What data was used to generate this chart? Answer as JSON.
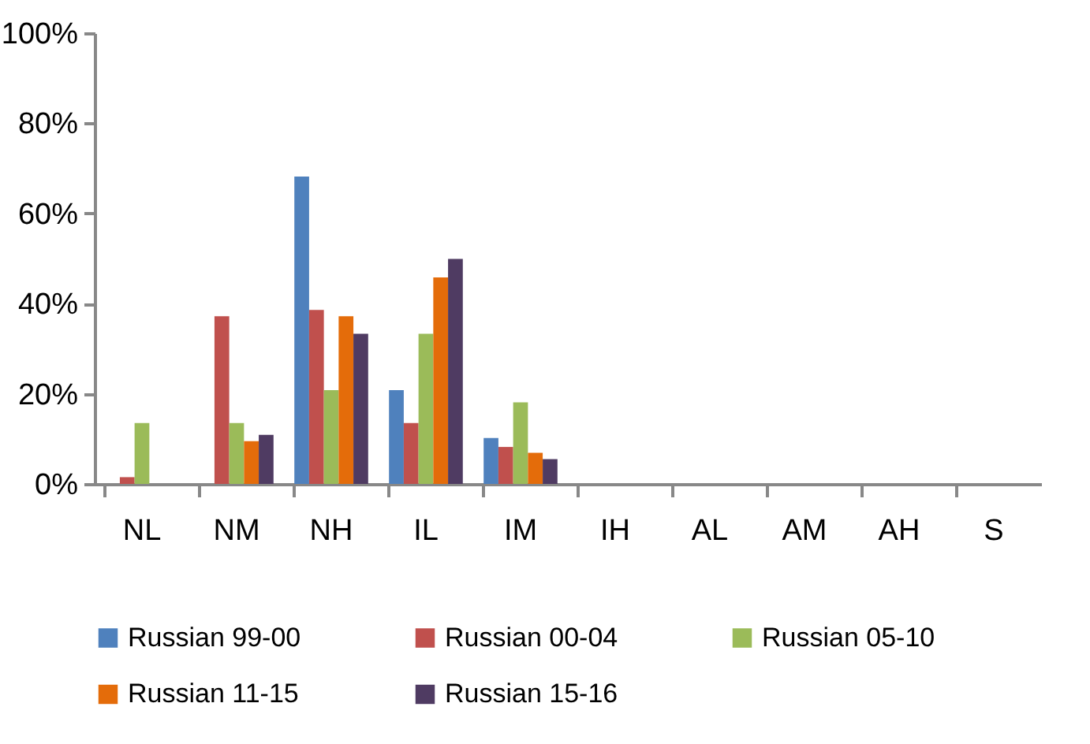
{
  "chart_data": {
    "type": "bar",
    "categories": [
      "NL",
      "NM",
      "NH",
      "IL",
      "IM",
      "IH",
      "AL",
      "AM",
      "AH",
      "S"
    ],
    "series": [
      {
        "name": "Russian 99-00",
        "color": "#4f81bd",
        "values": [
          0,
          0,
          68.2,
          20.8,
          10.2,
          0,
          0,
          0,
          0,
          0
        ]
      },
      {
        "name": "Russian 00-04",
        "color": "#c0504d",
        "values": [
          1.5,
          37.2,
          38.6,
          13.5,
          8.2,
          0,
          0,
          0,
          0,
          0
        ]
      },
      {
        "name": "Russian 05-10",
        "color": "#9bbb59",
        "values": [
          13.5,
          13.5,
          20.8,
          33.3,
          18.1,
          0,
          0,
          0,
          0,
          0
        ]
      },
      {
        "name": "Russian 11-15",
        "color": "#e46c0a",
        "values": [
          0,
          9.5,
          37.2,
          45.8,
          6.9,
          0,
          0,
          0,
          0,
          0
        ]
      },
      {
        "name": "Russian 15-16",
        "color": "#4f3b62",
        "values": [
          0,
          10.9,
          33.3,
          49.9,
          5.5,
          0,
          0,
          0,
          0,
          0
        ]
      }
    ],
    "ylim": [
      0,
      100
    ],
    "yticks": [
      {
        "value": 0,
        "label": "0%"
      },
      {
        "value": 20,
        "label": "20%"
      },
      {
        "value": 40,
        "label": "40%"
      },
      {
        "value": 60,
        "label": "60%"
      },
      {
        "value": 80,
        "label": "80%"
      },
      {
        "value": 100,
        "label": "100%"
      }
    ],
    "grid": false,
    "legend": "bottom"
  }
}
